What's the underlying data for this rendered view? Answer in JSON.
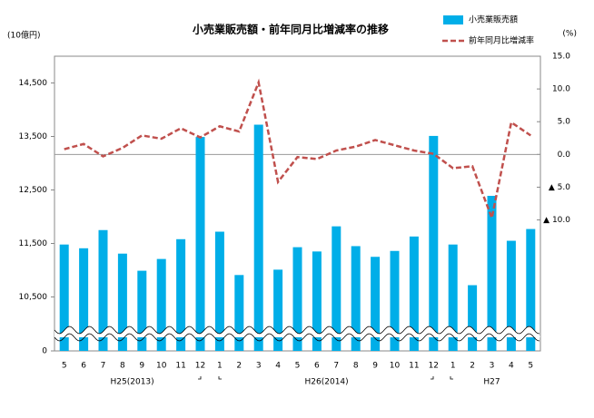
{
  "chart_data": {
    "type": "bar_line",
    "title": "小売業販売額・前年同月比増減率の推移",
    "y_label": "(10億円)",
    "y2_label": "(%)",
    "categories": [
      "5",
      "6",
      "7",
      "8",
      "9",
      "10",
      "11",
      "12",
      "1",
      "2",
      "3",
      "4",
      "5",
      "6",
      "7",
      "8",
      "9",
      "10",
      "11",
      "12",
      "1",
      "2",
      "3",
      "4",
      "5"
    ],
    "x_groups": [
      {
        "label": "H25(2013)",
        "start": 0,
        "end": 7
      },
      {
        "label": "H26(2014)",
        "start": 8,
        "end": 19
      },
      {
        "label": "H27",
        "start": 20,
        "end": 24
      }
    ],
    "series": [
      {
        "name": "小売業販売額",
        "type": "bar",
        "color": "#00aee8",
        "values": [
          11480,
          11410,
          11750,
          11310,
          10990,
          11210,
          11580,
          13490,
          11720,
          10910,
          13720,
          11010,
          11430,
          11350,
          11820,
          11450,
          11250,
          11360,
          11630,
          13510,
          11480,
          10720,
          12390,
          11550,
          11770
        ]
      },
      {
        "name": "前年同月比増減率",
        "type": "line",
        "axis": "y2",
        "color": "#c0504d",
        "dashed": true,
        "values": [
          0.8,
          1.6,
          -0.3,
          1.0,
          2.9,
          2.4,
          4.0,
          2.6,
          4.3,
          3.5,
          11.0,
          -4.2,
          -0.4,
          -0.7,
          0.6,
          1.2,
          2.2,
          1.4,
          0.6,
          0.1,
          -2.1,
          -1.8,
          -9.7,
          4.9,
          2.9
        ]
      }
    ],
    "ylim": [
      0,
      15000
    ],
    "y_break": [
      0,
      10000
    ],
    "yticks": [
      0,
      {
        "value": 10500,
        "label": "10,500"
      },
      {
        "value": 11500,
        "label": "11,500"
      },
      {
        "value": 12500,
        "label": "12,500"
      },
      {
        "value": 13500,
        "label": "13,500"
      },
      {
        "value": 14500,
        "label": "14,500"
      }
    ],
    "y2lim": [
      -30,
      15
    ],
    "y2ticks": [
      {
        "value": 15,
        "label": "15.0"
      },
      {
        "value": 10,
        "label": "10.0"
      },
      {
        "value": 5,
        "label": "5.0"
      },
      {
        "value": 0,
        "label": "0.0"
      },
      {
        "value": -5,
        "label": "▲ 5.0"
      },
      {
        "value": -10,
        "label": "▲ 10.0"
      }
    ],
    "y2_zero_line": true
  }
}
